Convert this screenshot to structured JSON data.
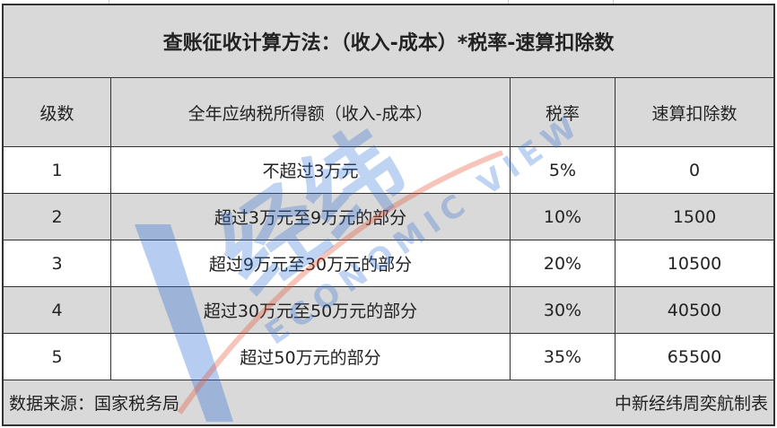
{
  "title": "查账征收计算方法：（收入-成本）*税率-速算扣除数",
  "columns": [
    "级数",
    "全年应纳税所得额（收入-成本）",
    "税率",
    "速算扣除数"
  ],
  "rows": [
    [
      "1",
      "不超过3万元",
      "5%",
      "0"
    ],
    [
      "2",
      "超过3万元至9万元的部分",
      "10%",
      "1500"
    ],
    [
      "3",
      "超过9万元至30万元的部分",
      "20%",
      "10500"
    ],
    [
      "4",
      "超过30万元至50万元的部分",
      "30%",
      "40500"
    ],
    [
      "5",
      "超过50万元的部分",
      "35%",
      "65500"
    ]
  ],
  "footer": {
    "source": "数据来源：国家税务局",
    "credit": "中新经纬周奕航制表"
  },
  "watermark": {
    "logo_text": "中新经纬",
    "sub_text": "ECONOMIC VIEW",
    "colors": {
      "red": "#e8563a",
      "blue": "#2f6fd6"
    }
  },
  "colors": {
    "row_gray": "#d9d9d9",
    "border": "#333333"
  }
}
